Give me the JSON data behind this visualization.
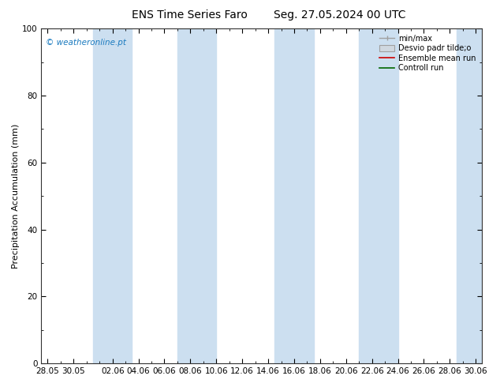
{
  "title_left": "ENS Time Series Faro",
  "title_right": "Seg. 27.05.2024 00 UTC",
  "ylabel": "Precipitation Accumulation (mm)",
  "watermark": "© weatheronline.pt",
  "watermark_color": "#1a7abf",
  "ylim": [
    0,
    100
  ],
  "yticks": [
    0,
    20,
    40,
    60,
    80,
    100
  ],
  "xtick_labels": [
    "28.05",
    "30.05",
    "02.06",
    "04.06",
    "06.06",
    "08.06",
    "10.06",
    "12.06",
    "14.06",
    "16.06",
    "18.06",
    "20.06",
    "22.06",
    "24.06",
    "26.06",
    "28.06",
    "30.06"
  ],
  "background_color": "#ffffff",
  "plot_bg_color": "#ffffff",
  "band_color": "#ccdff0",
  "legend_labels": [
    "min/max",
    "Desvio padr tilde;o",
    "Ensemble mean run",
    "Controll run"
  ],
  "legend_line_color": "#a0a0a0",
  "ensemble_color": "#cc0000",
  "control_color": "#006600",
  "title_fontsize": 10,
  "tick_fontsize": 7.5,
  "ylabel_fontsize": 8,
  "watermark_fontsize": 7.5
}
